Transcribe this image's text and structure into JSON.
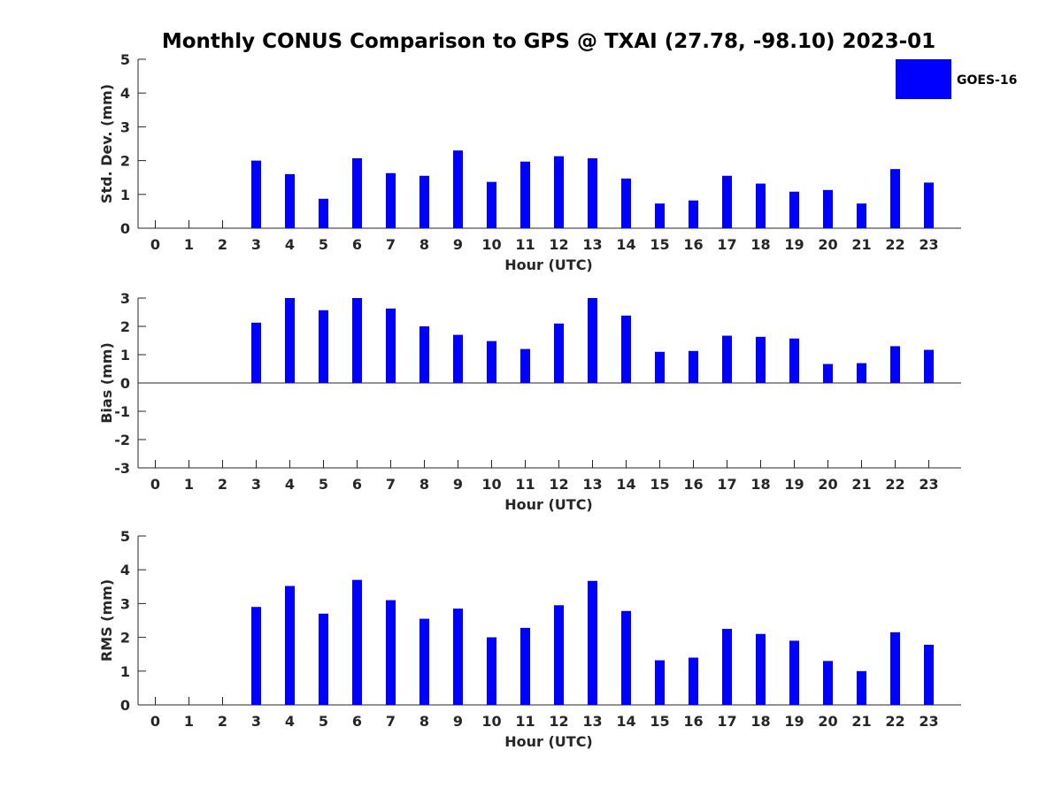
{
  "title": "Monthly CONUS Comparison to GPS @ TXAI (27.78, -98.10) 2023-01",
  "legend": {
    "label": "GOES-16",
    "color": "#0000ff"
  },
  "chart_data": [
    {
      "type": "bar",
      "name": "std-dev",
      "xlabel": "Hour (UTC)",
      "ylabel": "Std. Dev. (mm)",
      "ylim": [
        0,
        5
      ],
      "yticks": [
        0,
        1,
        2,
        3,
        4,
        5
      ],
      "categories": [
        "0",
        "1",
        "2",
        "3",
        "4",
        "5",
        "6",
        "7",
        "8",
        "9",
        "10",
        "11",
        "12",
        "13",
        "14",
        "15",
        "16",
        "17",
        "18",
        "19",
        "20",
        "21",
        "22",
        "23"
      ],
      "series": [
        {
          "name": "GOES-16",
          "color": "#0000ff",
          "values": [
            null,
            null,
            null,
            2.0,
            1.6,
            0.87,
            2.07,
            1.63,
            1.55,
            2.3,
            1.37,
            1.97,
            2.13,
            2.07,
            1.47,
            0.73,
            0.82,
            1.55,
            1.32,
            1.08,
            1.13,
            0.73,
            1.75,
            1.35
          ]
        }
      ]
    },
    {
      "type": "bar",
      "name": "bias",
      "xlabel": "Hour (UTC)",
      "ylabel": "Bias (mm)",
      "ylim": [
        -3,
        3
      ],
      "yticks": [
        -3,
        -2,
        -1,
        0,
        1,
        2,
        3
      ],
      "categories": [
        "0",
        "1",
        "2",
        "3",
        "4",
        "5",
        "6",
        "7",
        "8",
        "9",
        "10",
        "11",
        "12",
        "13",
        "14",
        "15",
        "16",
        "17",
        "18",
        "19",
        "20",
        "21",
        "22",
        "23"
      ],
      "series": [
        {
          "name": "GOES-16",
          "color": "#0000ff",
          "values": [
            null,
            null,
            null,
            2.13,
            3.0,
            2.57,
            3.0,
            2.63,
            2.0,
            1.7,
            1.48,
            1.2,
            2.1,
            3.0,
            2.38,
            1.1,
            1.13,
            1.67,
            1.63,
            1.57,
            0.67,
            0.7,
            1.3,
            1.17
          ]
        }
      ]
    },
    {
      "type": "bar",
      "name": "rms",
      "xlabel": "Hour (UTC)",
      "ylabel": "RMS (mm)",
      "ylim": [
        0,
        5
      ],
      "yticks": [
        0,
        1,
        2,
        3,
        4,
        5
      ],
      "categories": [
        "0",
        "1",
        "2",
        "3",
        "4",
        "5",
        "6",
        "7",
        "8",
        "9",
        "10",
        "11",
        "12",
        "13",
        "14",
        "15",
        "16",
        "17",
        "18",
        "19",
        "20",
        "21",
        "22",
        "23"
      ],
      "series": [
        {
          "name": "GOES-16",
          "color": "#0000ff",
          "values": [
            null,
            null,
            null,
            2.9,
            3.52,
            2.7,
            3.7,
            3.1,
            2.55,
            2.85,
            2.0,
            2.28,
            2.95,
            3.67,
            2.78,
            1.32,
            1.4,
            2.25,
            2.1,
            1.9,
            1.3,
            1.0,
            2.15,
            1.78
          ]
        }
      ]
    }
  ]
}
